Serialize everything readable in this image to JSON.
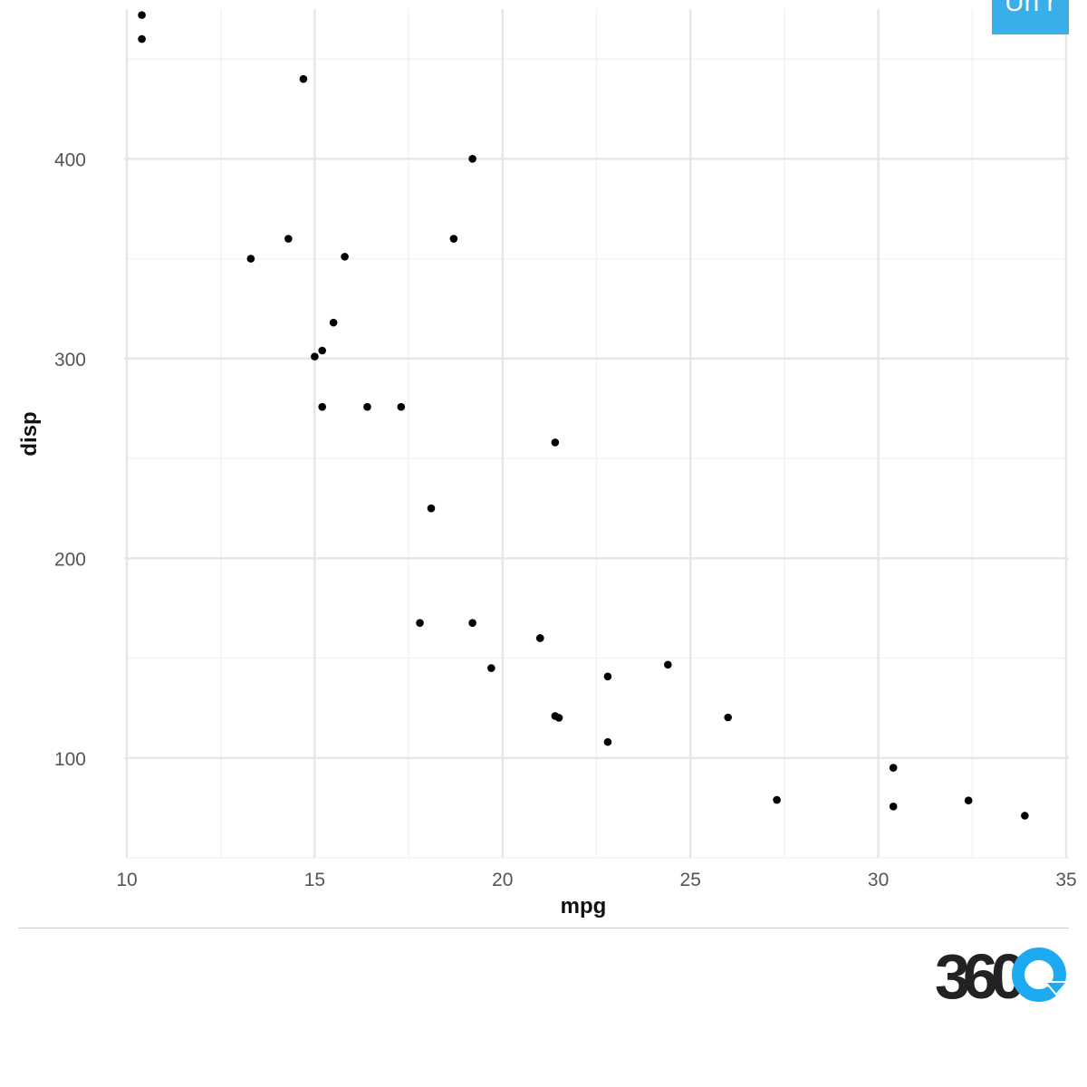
{
  "chart_data": {
    "type": "scatter",
    "title": "",
    "xlabel": "mpg",
    "ylabel": "disp",
    "xlim": [
      10,
      35
    ],
    "ylim": [
      50,
      475
    ],
    "x_ticks": [
      10,
      15,
      20,
      25,
      30,
      35
    ],
    "y_ticks": [
      100,
      200,
      300,
      400
    ],
    "grid": true,
    "legend": "none",
    "point_color": "#000000",
    "points": [
      {
        "x": 21.0,
        "y": 160
      },
      {
        "x": 21.0,
        "y": 160
      },
      {
        "x": 22.8,
        "y": 108
      },
      {
        "x": 21.4,
        "y": 258
      },
      {
        "x": 18.7,
        "y": 360
      },
      {
        "x": 18.1,
        "y": 225
      },
      {
        "x": 14.3,
        "y": 360
      },
      {
        "x": 24.4,
        "y": 146.7
      },
      {
        "x": 22.8,
        "y": 140.8
      },
      {
        "x": 19.2,
        "y": 167.6
      },
      {
        "x": 17.8,
        "y": 167.6
      },
      {
        "x": 16.4,
        "y": 275.8
      },
      {
        "x": 17.3,
        "y": 275.8
      },
      {
        "x": 15.2,
        "y": 275.8
      },
      {
        "x": 10.4,
        "y": 472
      },
      {
        "x": 10.4,
        "y": 460
      },
      {
        "x": 14.7,
        "y": 440
      },
      {
        "x": 32.4,
        "y": 78.7
      },
      {
        "x": 30.4,
        "y": 75.7
      },
      {
        "x": 33.9,
        "y": 71.1
      },
      {
        "x": 21.5,
        "y": 120.1
      },
      {
        "x": 15.5,
        "y": 318
      },
      {
        "x": 15.2,
        "y": 304
      },
      {
        "x": 13.3,
        "y": 350
      },
      {
        "x": 19.2,
        "y": 400
      },
      {
        "x": 27.3,
        "y": 79
      },
      {
        "x": 26.0,
        "y": 120.3
      },
      {
        "x": 30.4,
        "y": 95.1
      },
      {
        "x": 15.8,
        "y": 351
      },
      {
        "x": 19.7,
        "y": 145
      },
      {
        "x": 15.0,
        "y": 301
      },
      {
        "x": 21.4,
        "y": 121
      }
    ]
  },
  "badge": {
    "label": "Un r",
    "color": "#3aaee8"
  },
  "logo": {
    "text": "360",
    "icon": "refresh-arrow-icon",
    "dark_color": "#222222",
    "accent_color": "#1eaaf0"
  }
}
